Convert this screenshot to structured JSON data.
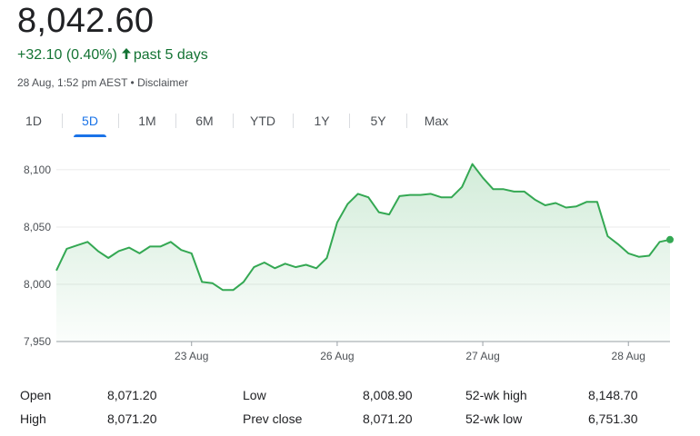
{
  "header": {
    "price": "8,042.60",
    "change": "+32.10 (0.40%)",
    "period": "past 5 days",
    "timestamp": "28 Aug, 1:52 pm AEST",
    "separator": "•",
    "disclaimer": "Disclaimer"
  },
  "colors": {
    "up": "#137333",
    "line": "#34a853",
    "accent": "#1a73e8",
    "grid": "#ebebeb"
  },
  "tabs": [
    {
      "label": "1D",
      "active": false
    },
    {
      "label": "5D",
      "active": true
    },
    {
      "label": "1M",
      "active": false
    },
    {
      "label": "6M",
      "active": false
    },
    {
      "label": "YTD",
      "active": false
    },
    {
      "label": "1Y",
      "active": false
    },
    {
      "label": "5Y",
      "active": false
    },
    {
      "label": "Max",
      "active": false
    }
  ],
  "chart_data": {
    "type": "area",
    "ylim": [
      7950,
      8115
    ],
    "yticks": [
      7950,
      8000,
      8050,
      8100
    ],
    "ytick_labels": [
      "7,950",
      "8,000",
      "8,050",
      "8,100"
    ],
    "xticks": [
      {
        "label": "23 Aug",
        "index": 13
      },
      {
        "label": "26 Aug",
        "index": 27
      },
      {
        "label": "27 Aug",
        "index": 41
      },
      {
        "label": "28 Aug",
        "index": 55
      }
    ],
    "values": [
      8012,
      8031,
      8034,
      8037,
      8029,
      8023,
      8029,
      8032,
      8027,
      8033,
      8033,
      8037,
      8030,
      8027,
      8002,
      8001,
      7995,
      7995,
      8002,
      8015,
      8019,
      8014,
      8018,
      8015,
      8017,
      8014,
      8023,
      8054,
      8070,
      8079,
      8076,
      8063,
      8061,
      8077,
      8078,
      8078,
      8079,
      8076,
      8076,
      8085,
      8105,
      8093,
      8083,
      8083,
      8081,
      8081,
      8074,
      8069,
      8071,
      8067,
      8068,
      8072,
      8072,
      8042,
      8035,
      8027,
      8024,
      8025,
      8037,
      8039
    ],
    "last_value": 8042.6
  },
  "stats": [
    {
      "label": "Open",
      "value": "8,071.20"
    },
    {
      "label": "High",
      "value": "8,071.20"
    },
    {
      "label": "Low",
      "value": "8,008.90"
    },
    {
      "label": "Prev close",
      "value": "8,071.20"
    },
    {
      "label": "52-wk high",
      "value": "8,148.70"
    },
    {
      "label": "52-wk low",
      "value": "6,751.30"
    }
  ]
}
